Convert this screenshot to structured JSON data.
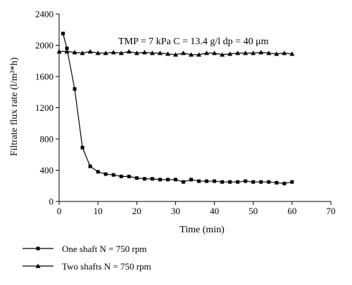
{
  "chart_data": {
    "type": "line",
    "annotation": {
      "label": "TMP = 7 kPa C = 13.4 g/l dp = 40 μm"
    },
    "xlabel": "Time (min)",
    "ylabel": "Filtrate flux rate (l/m²*h)",
    "xlim": [
      0,
      70
    ],
    "ylim": [
      0,
      2400
    ],
    "xticks": [
      0,
      10,
      20,
      30,
      40,
      50,
      60,
      70
    ],
    "yticks": [
      0,
      400,
      800,
      1200,
      1600,
      2000,
      2400
    ],
    "grid": false,
    "legend_position": "bottom-left, below plot",
    "series": [
      {
        "name": "One shaft N = 750 rpm",
        "marker": "square",
        "x": [
          1,
          2,
          4,
          6,
          8,
          10,
          12,
          14,
          16,
          18,
          20,
          22,
          24,
          26,
          28,
          30,
          32,
          34,
          36,
          38,
          40,
          42,
          44,
          46,
          48,
          50,
          52,
          54,
          56,
          58,
          60
        ],
        "y": [
          2150,
          1960,
          1440,
          690,
          450,
          380,
          350,
          340,
          320,
          320,
          300,
          290,
          290,
          280,
          280,
          280,
          250,
          280,
          260,
          260,
          260,
          250,
          250,
          250,
          260,
          250,
          250,
          250,
          240,
          230,
          250
        ]
      },
      {
        "name": "Two shafts N = 750 rpm",
        "marker": "triangle",
        "x": [
          0,
          2,
          4,
          6,
          8,
          10,
          12,
          14,
          16,
          18,
          20,
          22,
          24,
          26,
          28,
          30,
          32,
          34,
          36,
          38,
          40,
          42,
          44,
          46,
          48,
          50,
          52,
          54,
          56,
          58,
          60
        ],
        "y": [
          1920,
          1920,
          1910,
          1900,
          1920,
          1900,
          1900,
          1910,
          1900,
          1920,
          1900,
          1910,
          1900,
          1900,
          1890,
          1880,
          1900,
          1880,
          1880,
          1900,
          1900,
          1880,
          1890,
          1900,
          1900,
          1900,
          1910,
          1900,
          1890,
          1900,
          1890
        ]
      }
    ]
  }
}
